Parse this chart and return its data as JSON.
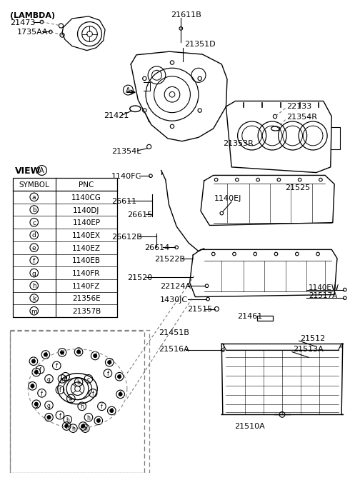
{
  "bg_color": "#ffffff",
  "line_color": "#000000",
  "text_color": "#000000",
  "table_rows": [
    [
      "a",
      "1140CG"
    ],
    [
      "b",
      "1140DJ"
    ],
    [
      "c",
      "1140EP"
    ],
    [
      "d",
      "1140EX"
    ],
    [
      "e",
      "1140EZ"
    ],
    [
      "f",
      "1140EB"
    ],
    [
      "g",
      "1140FR"
    ],
    [
      "h",
      "1140FZ"
    ],
    [
      "k",
      "21356E"
    ],
    [
      "m",
      "21357B"
    ]
  ]
}
